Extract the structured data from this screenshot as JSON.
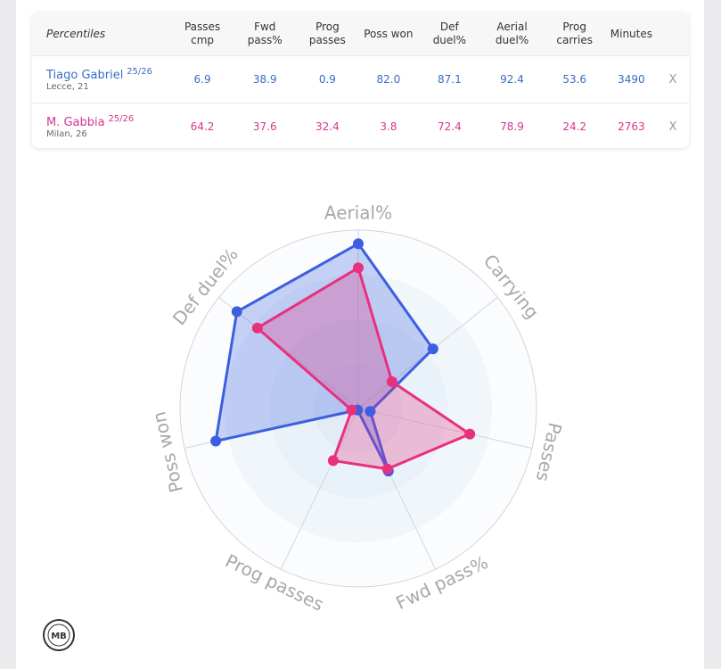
{
  "table": {
    "header": [
      "Percentiles",
      "Passes cmp",
      "Fwd pass%",
      "Prog passes",
      "Poss won",
      "Def duel%",
      "Aerial duel%",
      "Prog carries",
      "Minutes"
    ],
    "rows": [
      {
        "name": "Tiago Gabriel",
        "season": "25/26",
        "club": "Lecce, 21",
        "color": "#3a6cc6",
        "cells": [
          "6.9",
          "38.9",
          "0.9",
          "82.0",
          "87.1",
          "92.4",
          "53.6",
          "3490"
        ],
        "remove": "X"
      },
      {
        "name": "M. Gabbia",
        "season": "25/26",
        "club": "Milan, 26",
        "color": "#d63690",
        "cells": [
          "64.2",
          "37.6",
          "32.4",
          "3.8",
          "72.4",
          "78.9",
          "24.2",
          "2763"
        ],
        "remove": "X"
      }
    ]
  },
  "chart_data": {
    "type": "radar",
    "categories": [
      "Aerial%",
      "Carrying",
      "Passes",
      "Fwd pass%",
      "Prog passes",
      "Poss won",
      "Def duel%"
    ],
    "rlim": [
      0,
      100
    ],
    "rticks": [
      25,
      50,
      75,
      100
    ],
    "series": [
      {
        "color": "#3b5fe0",
        "values": [
          92.4,
          53.6,
          6.9,
          38.9,
          0.9,
          82.0,
          87.1
        ]
      },
      {
        "color": "#e8317e",
        "values": [
          78.9,
          24.2,
          64.2,
          37.6,
          32.4,
          3.8,
          72.4
        ]
      }
    ]
  },
  "logo": "MB"
}
